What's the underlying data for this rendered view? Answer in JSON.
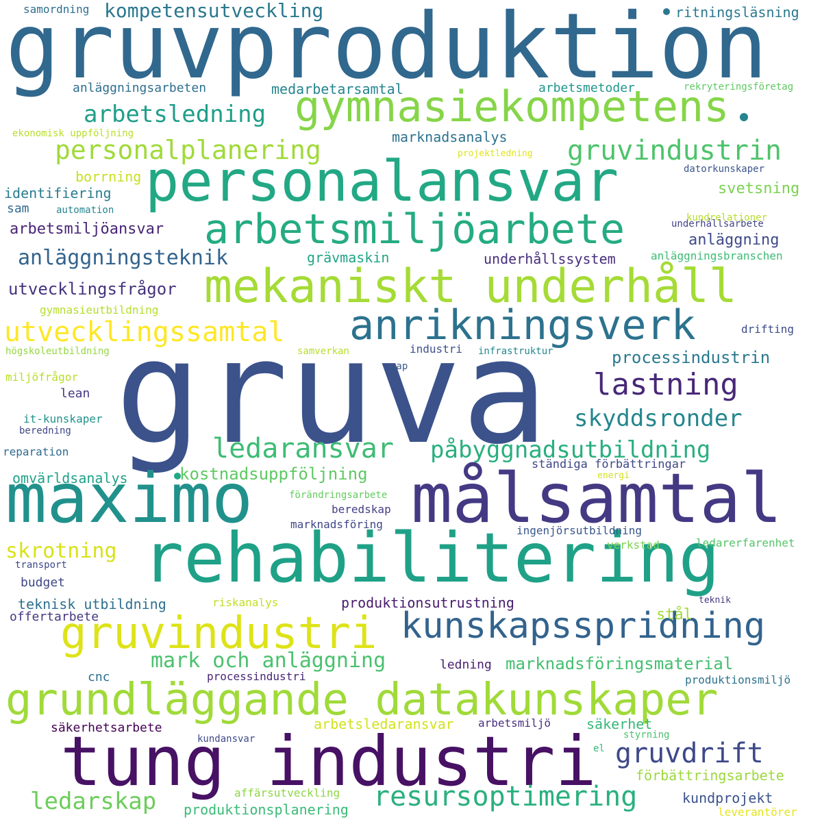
{
  "words": [
    {
      "text": "gruva",
      "color": "#3b528b"
    },
    {
      "text": "gruvproduktion",
      "color": "#31688e"
    },
    {
      "text": "maximo",
      "color": "#21918c"
    },
    {
      "text": "målsamtal",
      "color": "#443983"
    },
    {
      "text": "tung industri",
      "color": "#471164"
    },
    {
      "text": "rehabilitering",
      "color": "#1fa187"
    },
    {
      "text": "personalansvar",
      "color": "#22a884"
    },
    {
      "text": "grundläggande datakunskaper",
      "color": "#a0da39"
    },
    {
      "text": "mekaniskt underhåll",
      "color": "#a5db36"
    },
    {
      "text": "gymnasiekompetens",
      "color": "#86d549"
    },
    {
      "text": "arbetsmiljöarbete",
      "color": "#25ab82"
    },
    {
      "text": "anrikningsverk",
      "color": "#2c728e"
    },
    {
      "text": "kunskapsspridning",
      "color": "#33638d"
    },
    {
      "text": "gruvindustri",
      "color": "#dde318"
    },
    {
      "text": "resursoptimering",
      "color": "#2ab07f"
    },
    {
      "text": "gruvindustrin",
      "color": "#4ec36b"
    },
    {
      "text": "personalplanering",
      "color": "#a0da39"
    },
    {
      "text": "utvecklingssamtal",
      "color": "#fde725"
    },
    {
      "text": "ledaransvar",
      "color": "#3dbc74"
    },
    {
      "text": "påbyggnadsutbildning",
      "color": "#29af7f"
    },
    {
      "text": "arbetsledning",
      "color": "#1f9e89"
    },
    {
      "text": "lastning",
      "color": "#482878"
    },
    {
      "text": "anläggningsteknik",
      "color": "#33638d"
    },
    {
      "text": "gruvdrift",
      "color": "#3e4989"
    },
    {
      "text": "ledarskap",
      "color": "#6ccd5a"
    },
    {
      "text": "skyddsronder",
      "color": "#24868e"
    },
    {
      "text": "mark och anläggning",
      "color": "#4ac16d"
    },
    {
      "text": "skrotning",
      "color": "#d8e219"
    },
    {
      "text": "kompetensutveckling",
      "color": "#2a788e"
    },
    {
      "text": "processindustrin",
      "color": "#2a788e"
    },
    {
      "text": "kostnadsuppföljning",
      "color": "#5ec962"
    },
    {
      "text": "utvecklingsfrågor",
      "color": "#46337e"
    },
    {
      "text": "marknadsföringsmaterial",
      "color": "#44bf70"
    },
    {
      "text": "produktionsutrustning",
      "color": "#481a6c"
    },
    {
      "text": "teknisk utbildning",
      "color": "#2d708e"
    },
    {
      "text": "förbättringsarbete",
      "color": "#9bd93c"
    },
    {
      "text": "arbetsmiljöansvar",
      "color": "#482475"
    },
    {
      "text": "underhållssystem",
      "color": "#472d7b"
    },
    {
      "text": "anläggning",
      "color": "#3e4989"
    },
    {
      "text": "marknadsanalys",
      "color": "#2c728e"
    },
    {
      "text": "medarbetarsamtal",
      "color": "#25848e"
    },
    {
      "text": "svetsning",
      "color": "#7ad151"
    },
    {
      "text": "grävmaskin",
      "color": "#20a486"
    },
    {
      "text": "identifiering",
      "color": "#287c8e"
    },
    {
      "text": "borrning",
      "color": "#c8e020"
    },
    {
      "text": "stål",
      "color": "#a2da37"
    },
    {
      "text": "ledning",
      "color": "#481f70"
    },
    {
      "text": "säkerhetsarbete",
      "color": "#440154"
    },
    {
      "text": "arbetsledaransvar",
      "color": "#d2e21b"
    },
    {
      "text": "säkerhet",
      "color": "#35b779"
    },
    {
      "text": "ständiga förbättringar",
      "color": "#3f4788"
    },
    {
      "text": "produktionsplanering",
      "color": "#3aba76"
    },
    {
      "text": "omvärldsanalys",
      "color": "#1fa188"
    },
    {
      "text": "kundprojekt",
      "color": "#3b528b"
    },
    {
      "text": "offertarbete",
      "color": "#453882"
    },
    {
      "text": "budget",
      "color": "#3f4788"
    },
    {
      "text": "anläggningsarbeten",
      "color": "#2e6e8e"
    },
    {
      "text": "arbetsmetoder",
      "color": "#1f958b"
    },
    {
      "text": "ritningsläsning",
      "color": "#2a788e"
    },
    {
      "text": "industri",
      "color": "#3c4f8a"
    },
    {
      "text": "processindustri",
      "color": "#482576"
    },
    {
      "text": "arbetsmiljö",
      "color": "#462f7e"
    },
    {
      "text": "marknadsföring",
      "color": "#3f4788"
    },
    {
      "text": "beredskap",
      "color": "#423f85"
    },
    {
      "text": "lean",
      "color": "#443983"
    },
    {
      "text": "cnc",
      "color": "#2d708e"
    },
    {
      "text": "sam",
      "color": "#306a8e"
    },
    {
      "text": "ingenjörsutbildning",
      "color": "#39568c"
    },
    {
      "text": "produktionsmiljö",
      "color": "#2c728e"
    },
    {
      "text": "ledarerfarenhet",
      "color": "#52c569"
    },
    {
      "text": "affärsutveckling",
      "color": "#8ed645"
    },
    {
      "text": "kundansvar",
      "color": "#3e4a89"
    },
    {
      "text": "it-kunskaper",
      "color": "#20928c"
    },
    {
      "text": "reparation",
      "color": "#306a8e"
    },
    {
      "text": "anläggningsbranschen",
      "color": "#3dbc74"
    },
    {
      "text": "underhållsarbete",
      "color": "#414487"
    },
    {
      "text": "kundrelationer",
      "color": "#b5de2b"
    },
    {
      "text": "datorkunskaper",
      "color": "#3a548c"
    },
    {
      "text": "drifting",
      "color": "#3e4c8a"
    },
    {
      "text": "samordning",
      "color": "#2e6f8e"
    },
    {
      "text": "rekryteringsföretag",
      "color": "#5ec962"
    },
    {
      "text": "ekonomisk uppföljning",
      "color": "#b8de29"
    },
    {
      "text": "gymnasieutbildning",
      "color": "#b5de2b"
    },
    {
      "text": "högskoleutbildning",
      "color": "#95d840"
    },
    {
      "text": "miljöfrågor",
      "color": "#b8de29"
    },
    {
      "text": "samverkan",
      "color": "#b8de29"
    },
    {
      "text": "sap",
      "color": "#38598c"
    },
    {
      "text": "infrastruktur",
      "color": "#24878e"
    },
    {
      "text": "automation",
      "color": "#25848e"
    },
    {
      "text": "projektledning",
      "color": "#dfe318"
    },
    {
      "text": "förändringsarbete",
      "color": "#63cb5f"
    },
    {
      "text": "energi",
      "color": "#d2e21b"
    },
    {
      "text": "verkstad",
      "color": "#7ad151"
    },
    {
      "text": "riskanalys",
      "color": "#c2df23"
    },
    {
      "text": "transport",
      "color": "#3e4a89"
    },
    {
      "text": "beredning",
      "color": "#404688"
    },
    {
      "text": "teknik",
      "color": "#443a83"
    },
    {
      "text": "styrning",
      "color": "#4ac16d"
    },
    {
      "text": "el",
      "color": "#35b779"
    },
    {
      "text": "leverantörer",
      "color": "#e5e419"
    },
    {
      "text": "",
      "color": "#25848e"
    },
    {
      "text": "",
      "color": "#2a788e"
    },
    {
      "text": "",
      "color": "#22a884"
    }
  ]
}
